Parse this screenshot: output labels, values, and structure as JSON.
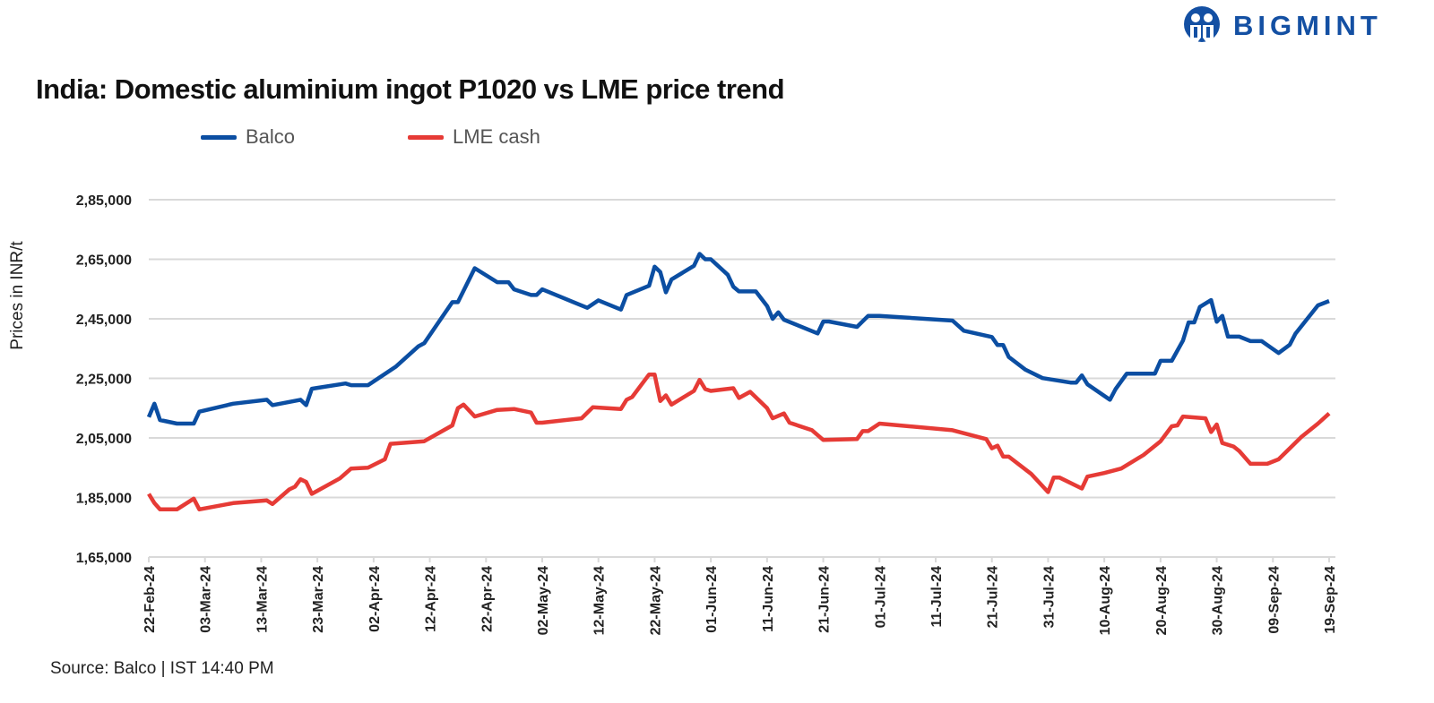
{
  "brand": {
    "name": "BIGMINT",
    "color": "#1450a3"
  },
  "chart_data": {
    "type": "line",
    "title": "India: Domestic aluminium ingot P1020 vs LME price trend",
    "xlabel": "",
    "ylabel": "Prices in INR/t",
    "xlim": [
      "2024-02-22",
      "2024-09-19"
    ],
    "ylim": [
      165000,
      285000
    ],
    "yticks": [
      165000,
      185000,
      205000,
      225000,
      245000,
      265000,
      285000
    ],
    "ytick_labels": [
      "1,65,000",
      "1,85,000",
      "2,05,000",
      "2,25,000",
      "2,45,000",
      "2,65,000",
      "2,85,000"
    ],
    "xtick_labels": [
      "22-Feb-24",
      "03-Mar-24",
      "13-Mar-24",
      "23-Mar-24",
      "02-Apr-24",
      "12-Apr-24",
      "22-Apr-24",
      "02-May-24",
      "12-May-24",
      "22-May-24",
      "01-Jun-24",
      "11-Jun-24",
      "21-Jun-24",
      "01-Jul-24",
      "11-Jul-24",
      "21-Jul-24",
      "31-Jul-24",
      "10-Aug-24",
      "20-Aug-24",
      "30-Aug-24",
      "09-Sep-24",
      "19-Sep-24"
    ],
    "grid": "horizontal",
    "legend_position": "top",
    "source": "Source: Balco | IST 14:40 PM",
    "series": [
      {
        "name": "Balco",
        "color": "#0b4ea2",
        "points": [
          [
            "2024-02-22",
            212000
          ],
          [
            "2024-02-23",
            216500
          ],
          [
            "2024-02-24",
            211000
          ],
          [
            "2024-02-27",
            209800
          ],
          [
            "2024-03-01",
            209800
          ],
          [
            "2024-03-02",
            213800
          ],
          [
            "2024-03-08",
            216500
          ],
          [
            "2024-03-14",
            217800
          ],
          [
            "2024-03-15",
            216000
          ],
          [
            "2024-03-20",
            217800
          ],
          [
            "2024-03-21",
            216000
          ],
          [
            "2024-03-22",
            221500
          ],
          [
            "2024-03-23",
            221800
          ],
          [
            "2024-03-28",
            223300
          ],
          [
            "2024-03-29",
            222700
          ],
          [
            "2024-04-01",
            222700
          ],
          [
            "2024-04-06",
            229000
          ],
          [
            "2024-04-10",
            235800
          ],
          [
            "2024-04-11",
            236800
          ],
          [
            "2024-04-16",
            250600
          ],
          [
            "2024-04-17",
            250600
          ],
          [
            "2024-04-20",
            262000
          ],
          [
            "2024-04-24",
            257300
          ],
          [
            "2024-04-26",
            257300
          ],
          [
            "2024-04-27",
            254900
          ],
          [
            "2024-04-30",
            253000
          ],
          [
            "2024-05-01",
            253000
          ],
          [
            "2024-05-02",
            254900
          ],
          [
            "2024-05-10",
            248700
          ],
          [
            "2024-05-12",
            251200
          ],
          [
            "2024-05-16",
            248100
          ],
          [
            "2024-05-17",
            253000
          ],
          [
            "2024-05-21",
            256100
          ],
          [
            "2024-05-22",
            262500
          ],
          [
            "2024-05-23",
            260700
          ],
          [
            "2024-05-24",
            253900
          ],
          [
            "2024-05-25",
            258200
          ],
          [
            "2024-05-29",
            262800
          ],
          [
            "2024-05-30",
            266800
          ],
          [
            "2024-05-31",
            265000
          ],
          [
            "2024-06-01",
            265000
          ],
          [
            "2024-06-04",
            259800
          ],
          [
            "2024-06-05",
            255800
          ],
          [
            "2024-06-06",
            254200
          ],
          [
            "2024-06-09",
            254200
          ],
          [
            "2024-06-11",
            249300
          ],
          [
            "2024-06-12",
            245000
          ],
          [
            "2024-06-13",
            247200
          ],
          [
            "2024-06-14",
            244700
          ],
          [
            "2024-06-20",
            240100
          ],
          [
            "2024-06-21",
            244100
          ],
          [
            "2024-06-22",
            244100
          ],
          [
            "2024-06-27",
            242300
          ],
          [
            "2024-06-29",
            246000
          ],
          [
            "2024-07-01",
            246000
          ],
          [
            "2024-07-14",
            244400
          ],
          [
            "2024-07-16",
            241000
          ],
          [
            "2024-07-21",
            238900
          ],
          [
            "2024-07-22",
            236200
          ],
          [
            "2024-07-23",
            236200
          ],
          [
            "2024-07-24",
            232200
          ],
          [
            "2024-07-27",
            227900
          ],
          [
            "2024-07-30",
            225100
          ],
          [
            "2024-08-04",
            223600
          ],
          [
            "2024-08-05",
            223600
          ],
          [
            "2024-08-06",
            226000
          ],
          [
            "2024-08-07",
            223000
          ],
          [
            "2024-08-11",
            217800
          ],
          [
            "2024-08-12",
            221400
          ],
          [
            "2024-08-14",
            226600
          ],
          [
            "2024-08-19",
            226600
          ],
          [
            "2024-08-20",
            230900
          ],
          [
            "2024-08-22",
            230900
          ],
          [
            "2024-08-24",
            237700
          ],
          [
            "2024-08-25",
            243800
          ],
          [
            "2024-08-26",
            243800
          ],
          [
            "2024-08-27",
            249000
          ],
          [
            "2024-08-29",
            251300
          ],
          [
            "2024-08-30",
            244000
          ],
          [
            "2024-08-31",
            246000
          ],
          [
            "2024-09-01",
            239000
          ],
          [
            "2024-09-03",
            239000
          ],
          [
            "2024-09-05",
            237500
          ],
          [
            "2024-09-07",
            237500
          ],
          [
            "2024-09-10",
            233500
          ],
          [
            "2024-09-12",
            236300
          ],
          [
            "2024-09-13",
            240000
          ],
          [
            "2024-09-17",
            249500
          ],
          [
            "2024-09-19",
            251000
          ]
        ]
      },
      {
        "name": "LME cash",
        "color": "#e63b36",
        "points": [
          [
            "2024-02-22",
            186200
          ],
          [
            "2024-02-23",
            183100
          ],
          [
            "2024-02-24",
            181000
          ],
          [
            "2024-02-27",
            181000
          ],
          [
            "2024-03-01",
            184600
          ],
          [
            "2024-03-02",
            181000
          ],
          [
            "2024-03-08",
            183100
          ],
          [
            "2024-03-14",
            184000
          ],
          [
            "2024-03-15",
            182800
          ],
          [
            "2024-03-18",
            187700
          ],
          [
            "2024-03-19",
            188600
          ],
          [
            "2024-03-20",
            191100
          ],
          [
            "2024-03-21",
            190200
          ],
          [
            "2024-03-22",
            186200
          ],
          [
            "2024-03-27",
            191400
          ],
          [
            "2024-03-29",
            194700
          ],
          [
            "2024-04-01",
            195000
          ],
          [
            "2024-04-04",
            197800
          ],
          [
            "2024-04-05",
            203000
          ],
          [
            "2024-04-11",
            203900
          ],
          [
            "2024-04-16",
            209200
          ],
          [
            "2024-04-17",
            215000
          ],
          [
            "2024-04-18",
            216200
          ],
          [
            "2024-04-20",
            212200
          ],
          [
            "2024-04-24",
            214400
          ],
          [
            "2024-04-27",
            214700
          ],
          [
            "2024-04-30",
            213500
          ],
          [
            "2024-05-01",
            210100
          ],
          [
            "2024-05-02",
            210100
          ],
          [
            "2024-05-09",
            211600
          ],
          [
            "2024-05-11",
            215300
          ],
          [
            "2024-05-16",
            214700
          ],
          [
            "2024-05-17",
            217800
          ],
          [
            "2024-05-18",
            218700
          ],
          [
            "2024-05-21",
            226300
          ],
          [
            "2024-05-22",
            226300
          ],
          [
            "2024-05-23",
            217400
          ],
          [
            "2024-05-24",
            219300
          ],
          [
            "2024-05-25",
            216200
          ],
          [
            "2024-05-29",
            220800
          ],
          [
            "2024-05-30",
            224500
          ],
          [
            "2024-05-31",
            221400
          ],
          [
            "2024-06-01",
            220800
          ],
          [
            "2024-06-05",
            221700
          ],
          [
            "2024-06-06",
            218400
          ],
          [
            "2024-06-08",
            220500
          ],
          [
            "2024-06-11",
            215000
          ],
          [
            "2024-06-12",
            211600
          ],
          [
            "2024-06-14",
            213200
          ],
          [
            "2024-06-15",
            210100
          ],
          [
            "2024-06-19",
            207600
          ],
          [
            "2024-06-21",
            204300
          ],
          [
            "2024-06-27",
            204600
          ],
          [
            "2024-06-28",
            207300
          ],
          [
            "2024-06-29",
            207300
          ],
          [
            "2024-07-01",
            209800
          ],
          [
            "2024-07-14",
            207600
          ],
          [
            "2024-07-20",
            204600
          ],
          [
            "2024-07-21",
            201500
          ],
          [
            "2024-07-22",
            202400
          ],
          [
            "2024-07-23",
            198700
          ],
          [
            "2024-07-24",
            198700
          ],
          [
            "2024-07-28",
            192900
          ],
          [
            "2024-07-31",
            186800
          ],
          [
            "2024-08-01",
            191700
          ],
          [
            "2024-08-02",
            191700
          ],
          [
            "2024-08-06",
            188000
          ],
          [
            "2024-08-07",
            192000
          ],
          [
            "2024-08-10",
            193200
          ],
          [
            "2024-08-13",
            194700
          ],
          [
            "2024-08-17",
            199300
          ],
          [
            "2024-08-20",
            203900
          ],
          [
            "2024-08-22",
            208900
          ],
          [
            "2024-08-23",
            209200
          ],
          [
            "2024-08-24",
            212200
          ],
          [
            "2024-08-28",
            211600
          ],
          [
            "2024-08-29",
            207000
          ],
          [
            "2024-08-30",
            209500
          ],
          [
            "2024-08-31",
            203300
          ],
          [
            "2024-09-02",
            202100
          ],
          [
            "2024-09-03",
            200600
          ],
          [
            "2024-09-05",
            196300
          ],
          [
            "2024-09-08",
            196300
          ],
          [
            "2024-09-10",
            197800
          ],
          [
            "2024-09-12",
            201500
          ],
          [
            "2024-09-14",
            205200
          ],
          [
            "2024-09-17",
            209800
          ],
          [
            "2024-09-19",
            213200
          ]
        ]
      }
    ]
  }
}
